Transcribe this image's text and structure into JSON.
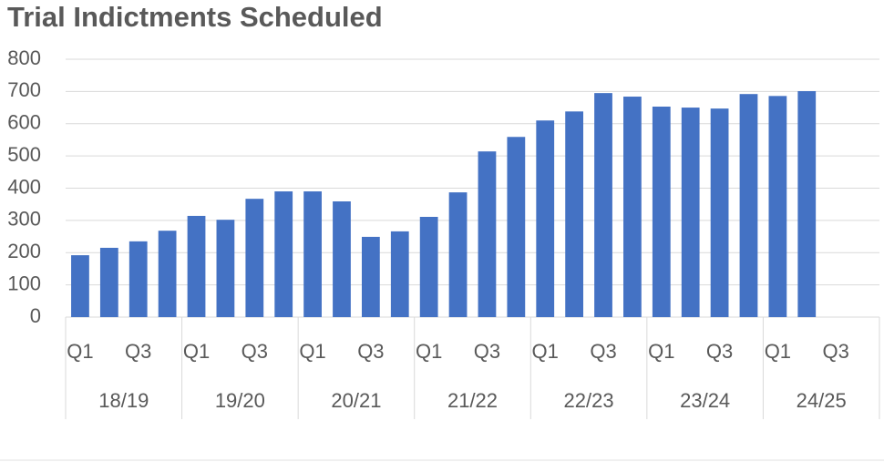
{
  "chart_data": {
    "type": "bar",
    "title": "Trial Indictments Scheduled",
    "categories": [
      "Q1",
      null,
      "Q3",
      null,
      "Q1",
      null,
      "Q3",
      null,
      "Q1",
      null,
      "Q3",
      null,
      "Q1",
      null,
      "Q3",
      null,
      "Q1",
      null,
      "Q3",
      null,
      "Q1",
      null,
      "Q3",
      null,
      "Q1",
      null,
      "Q3",
      null
    ],
    "groups": [
      "18/19",
      "19/20",
      "20/21",
      "21/22",
      "22/23",
      "23/24",
      "24/25"
    ],
    "values": [
      192,
      215,
      235,
      268,
      314,
      302,
      367,
      390,
      390,
      359,
      249,
      266,
      311,
      387,
      514,
      559,
      610,
      638,
      695,
      684,
      653,
      650,
      647,
      692,
      686,
      701,
      null,
      null
    ],
    "color": "#4472c4",
    "ylim": [
      0,
      800
    ],
    "yticks": [
      0,
      100,
      200,
      300,
      400,
      500,
      600,
      700,
      800
    ],
    "grid": true
  }
}
